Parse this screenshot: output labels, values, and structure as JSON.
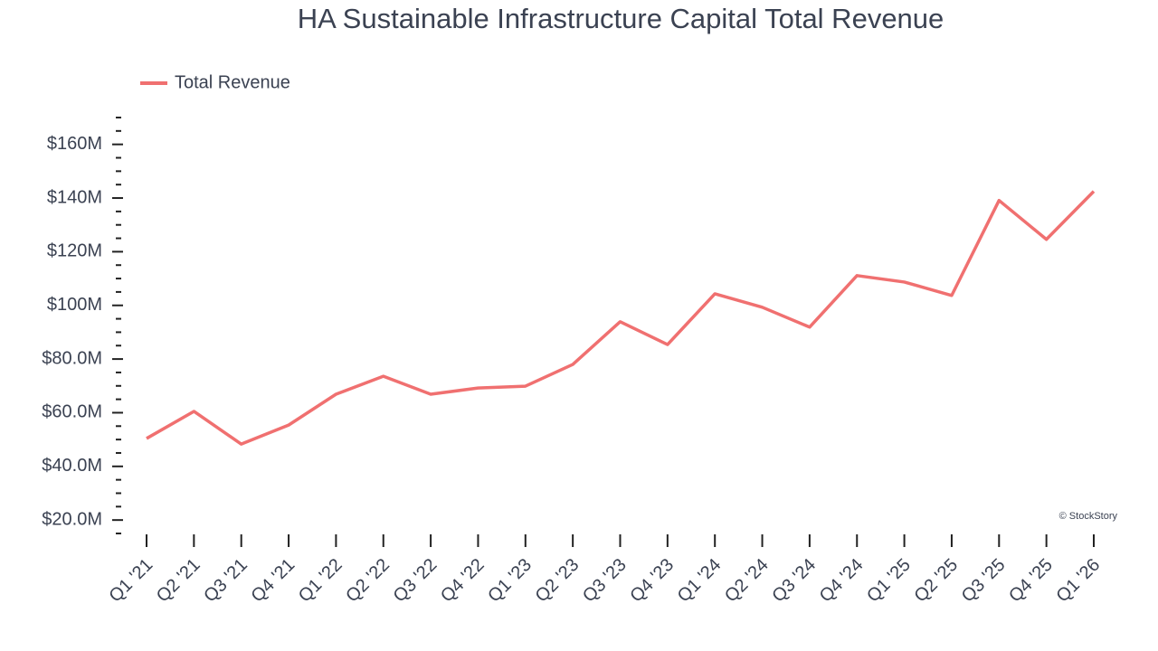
{
  "chart_data": {
    "type": "line",
    "title": "HA Sustainable Infrastructure Capital Total Revenue",
    "watermark": "© StockStory",
    "legend": "top-left",
    "categories": [
      "Q1 '21",
      "Q2 '21",
      "Q3 '21",
      "Q4 '21",
      "Q1 '22",
      "Q2 '22",
      "Q3 '22",
      "Q4 '22",
      "Q1 '23",
      "Q2 '23",
      "Q3 '23",
      "Q4 '23",
      "Q1 '24",
      "Q2 '24",
      "Q3 '24",
      "Q4 '24",
      "Q1 '25",
      "Q2 '25",
      "Q3 '25",
      "Q4 '25",
      "Q1 '26"
    ],
    "series": [
      {
        "name": "Total Revenue",
        "color": "#f07070",
        "values": [
          50400000,
          60500000,
          48300000,
          55400000,
          66900000,
          73600000,
          66900000,
          69200000,
          69900000,
          78000000,
          93900000,
          85400000,
          104300000,
          99300000,
          91900000,
          111100000,
          108700000,
          103700000,
          139100000,
          124600000,
          142500000
        ]
      }
    ],
    "ylim": [
      15000000,
      170000000
    ],
    "yticks": [
      {
        "value": 20000000,
        "label": "$20.0M"
      },
      {
        "value": 40000000,
        "label": "$40.0M"
      },
      {
        "value": 60000000,
        "label": "$60.0M"
      },
      {
        "value": 80000000,
        "label": "$80.0M"
      },
      {
        "value": 100000000,
        "label": "$100M"
      },
      {
        "value": 120000000,
        "label": "$120M"
      },
      {
        "value": 140000000,
        "label": "$140M"
      },
      {
        "value": 160000000,
        "label": "$160M"
      }
    ],
    "minor_yticks": [
      15000000,
      25000000,
      30000000,
      35000000,
      45000000,
      50000000,
      55000000,
      65000000,
      70000000,
      75000000,
      85000000,
      90000000,
      95000000,
      105000000,
      110000000,
      115000000,
      125000000,
      130000000,
      135000000,
      145000000,
      150000000,
      155000000,
      165000000,
      170000000
    ]
  }
}
